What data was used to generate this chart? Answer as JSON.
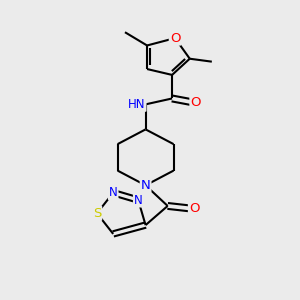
{
  "bg_color": "#ebebeb",
  "bond_color": "#000000",
  "bond_width": 1.5,
  "atom_colors": {
    "O": "#ff0000",
    "N": "#0000ff",
    "S": "#cccc00",
    "C": "#000000",
    "H": "#5a8a8a"
  },
  "font_size": 8.5,
  "fig_size": [
    3.0,
    3.0
  ],
  "dpi": 100
}
